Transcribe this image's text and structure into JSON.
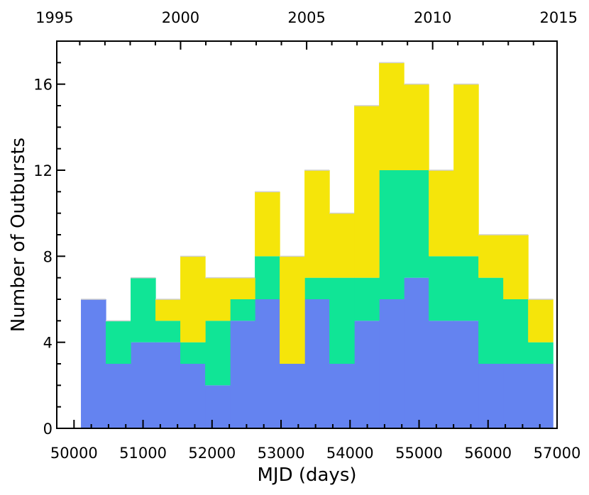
{
  "chart_data": {
    "type": "bar",
    "stacked": true,
    "histogram": true,
    "bin_edges": [
      50100,
      50460,
      50820,
      51180,
      51540,
      51900,
      52260,
      52620,
      52980,
      53340,
      53700,
      54060,
      54420,
      54780,
      55140,
      55500,
      55860,
      56220,
      56580,
      56940
    ],
    "series": [
      {
        "values": [
          6,
          3,
          4,
          4,
          3,
          2,
          5,
          6,
          3,
          6,
          3,
          5,
          6,
          7,
          5,
          5,
          3,
          3,
          3
        ],
        "color": "#6483f0"
      },
      {
        "values": [
          0,
          2,
          3,
          1,
          1,
          3,
          1,
          2,
          0,
          1,
          4,
          2,
          6,
          5,
          3,
          3,
          4,
          3,
          1
        ],
        "color": "#10e596"
      },
      {
        "values": [
          0,
          0,
          0,
          1,
          4,
          2,
          1,
          3,
          5,
          5,
          3,
          8,
          5,
          4,
          4,
          8,
          2,
          3,
          2
        ],
        "color": "#f5e50a"
      }
    ],
    "xlabel": "MJD (days)",
    "ylabel": "Number of Outbursts",
    "xlim": [
      49750,
      57000
    ],
    "ylim": [
      0,
      18
    ],
    "x_ticks": [
      "50000",
      "51000",
      "52000",
      "53000",
      "54000",
      "55000",
      "56000",
      "57000"
    ],
    "x_tick_values": [
      50000,
      51000,
      52000,
      53000,
      54000,
      55000,
      56000,
      57000
    ],
    "y_ticks": [
      "0",
      "4",
      "8",
      "12",
      "16"
    ],
    "y_tick_values": [
      0,
      4,
      8,
      12,
      16
    ],
    "top_axis": {
      "ticks": [
        "1995",
        "2000",
        "2005",
        "2010",
        "2015"
      ],
      "tick_values": [
        49718,
        51544,
        53371,
        55197,
        57023
      ],
      "minor_tick_values": [
        50083,
        50448,
        50814,
        51179,
        51910,
        52275,
        52640,
        53005,
        53736,
        54101,
        54466,
        54832,
        55562,
        55927,
        56293,
        56658
      ]
    },
    "grid": false,
    "legend": "none"
  }
}
